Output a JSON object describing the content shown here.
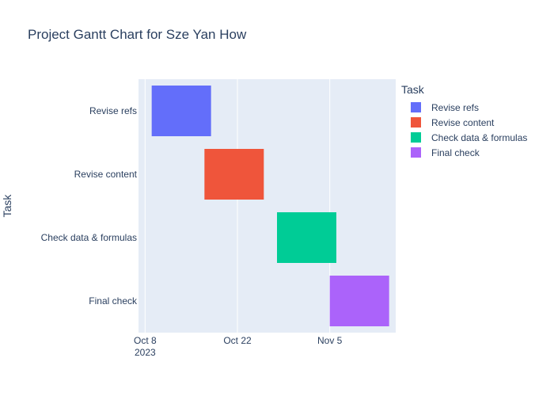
{
  "chart_data": {
    "type": "gantt",
    "title": "Project Gantt Chart for Sze Yan How",
    "ylabel": "Task",
    "xlabel": "",
    "legend_title": "Task",
    "legend_placement": "right",
    "grid": true,
    "x_range": [
      "2023-10-07",
      "2023-11-15"
    ],
    "x_ticks": [
      {
        "date": "2023-10-08",
        "label": "Oct 8",
        "sublabel": "2023"
      },
      {
        "date": "2023-10-22",
        "label": "Oct 22",
        "sublabel": ""
      },
      {
        "date": "2023-11-05",
        "label": "Nov 5",
        "sublabel": ""
      }
    ],
    "tasks": [
      {
        "name": "Revise refs",
        "start": "2023-10-09",
        "end": "2023-10-18",
        "color": "#636efa"
      },
      {
        "name": "Revise content",
        "start": "2023-10-17",
        "end": "2023-10-26",
        "color": "#ef553b"
      },
      {
        "name": "Check data & formulas",
        "start": "2023-10-28",
        "end": "2023-11-06",
        "color": "#00cc96"
      },
      {
        "name": "Final check",
        "start": "2023-11-05",
        "end": "2023-11-14",
        "color": "#ab63fa"
      }
    ]
  }
}
